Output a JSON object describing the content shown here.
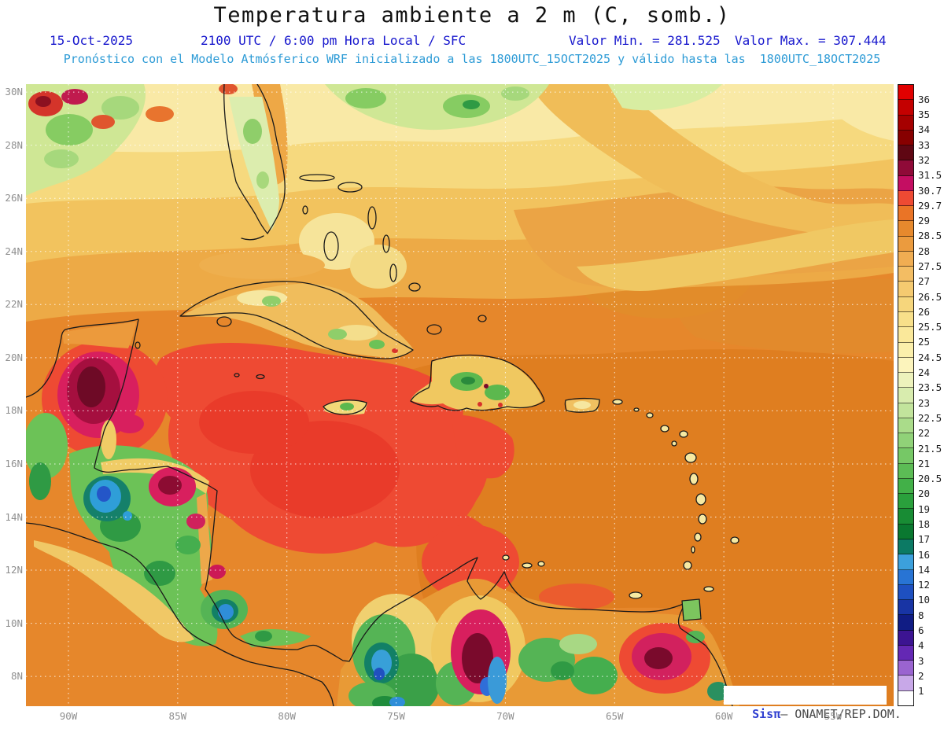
{
  "title": "Temperatura ambiente a 2 m (C, somb.)",
  "header": {
    "date": "15-Oct-2025",
    "time_local": "2100 UTC / 6:00 pm Hora Local / SFC",
    "valor_min": "Valor Min. = 281.525",
    "valor_max": "Valor Max. = 307.444",
    "forecast": "Pronóstico con el Modelo Atmósferico WRF inicializado a las 1800UTC_15OCT2025 y válido hasta las  1800UTC_18OCT2025"
  },
  "watermark": {
    "brand": "Sisπ",
    "org": "– ONAMET/REP.DOM."
  },
  "chart_data": {
    "type": "heatmap",
    "title": "Temperatura ambiente a 2 m (C, somb.)",
    "units": "C",
    "valor_min": 281.525,
    "valor_max": 307.444,
    "model": "WRF",
    "init_time": "1800UTC_15OCT2025",
    "valid_time": "1800UTC_18OCT2025",
    "run_label": "2100 UTC / 6:00 pm Hora Local / SFC",
    "date": "15-Oct-2025",
    "x_tick_labels": [
      "90W",
      "85W",
      "80W",
      "75W",
      "70W",
      "65W",
      "60W",
      "55W"
    ],
    "y_tick_labels": [
      "30N",
      "28N",
      "26N",
      "24N",
      "22N",
      "20N",
      "18N",
      "16N",
      "14N",
      "12N",
      "10N",
      "8N"
    ],
    "grid": "dotted",
    "legend_position": "right",
    "colorbar": {
      "labels_top_to_bottom": [
        "36",
        "35",
        "34",
        "33",
        "32",
        "31.5",
        "30.7",
        "29.7",
        "29",
        "28.5",
        "28",
        "27.5",
        "27",
        "26.5",
        "26",
        "25.5",
        "25",
        "24.5",
        "24",
        "23.5",
        "23",
        "22.5",
        "22",
        "21.5",
        "21",
        "20.5",
        "20",
        "19",
        "18",
        "17",
        "16",
        "14",
        "12",
        "10",
        "8",
        "6",
        "4",
        "3",
        "2",
        "1"
      ],
      "segment_colors_top_to_bottom": [
        "#e10000",
        "#c40000",
        "#a50000",
        "#870000",
        "#5f0713",
        "#8f0a38",
        "#c40e62",
        "#ee4a33",
        "#ea7426",
        "#e6892d",
        "#eb9b3e",
        "#f0ad52",
        "#f3bd63",
        "#f5ca70",
        "#f6d67c",
        "#f8e08a",
        "#fae89a",
        "#fbefab",
        "#fcf4bc",
        "#edf2bc",
        "#d8ecae",
        "#c2e49c",
        "#aadc8a",
        "#90d278",
        "#76c866",
        "#5cbc55",
        "#42b048",
        "#2aa03c",
        "#188c34",
        "#0a7830",
        "#0c7a64",
        "#3ca0dc",
        "#2874d4",
        "#1e50c0",
        "#1834a4",
        "#101c84",
        "#3c1492",
        "#6428b4",
        "#9a64d0",
        "#c8a8e8",
        "#ffffff"
      ]
    }
  }
}
